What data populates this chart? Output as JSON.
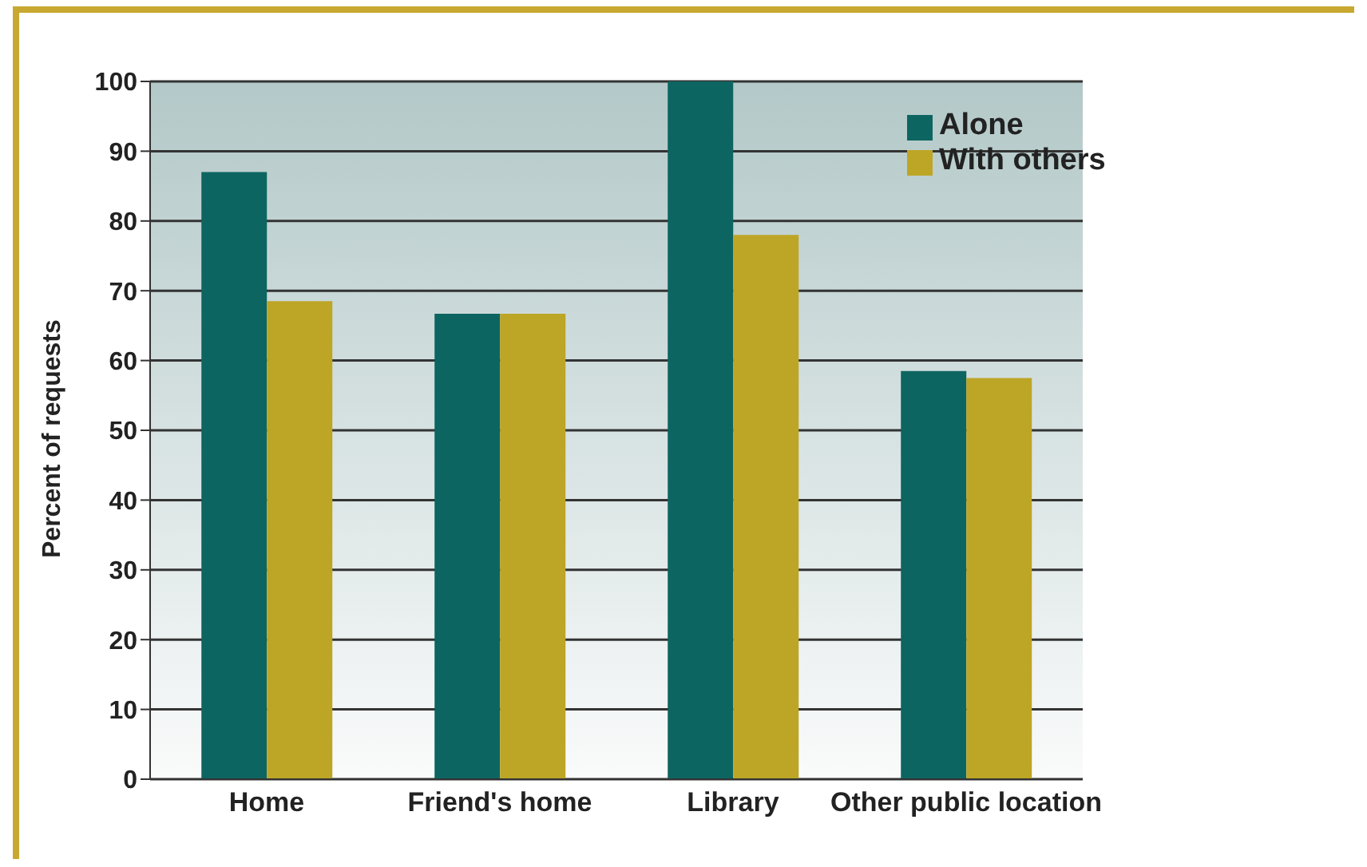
{
  "chart_data": {
    "type": "bar",
    "categories": [
      "Home",
      "Friend's home",
      "Library",
      "Other public location"
    ],
    "series": [
      {
        "name": "Alone",
        "color": "#0d6561",
        "values": [
          87,
          66.7,
          100,
          58.5
        ]
      },
      {
        "name": "With others",
        "color": "#bda526",
        "values": [
          68.5,
          66.7,
          78,
          57.5
        ]
      }
    ],
    "ylabel": "Percent of requests",
    "ylim": [
      0,
      100
    ],
    "yticks": [
      0,
      10,
      20,
      30,
      40,
      50,
      60,
      70,
      80,
      90,
      100
    ],
    "grid": "y",
    "legend": "top right"
  }
}
